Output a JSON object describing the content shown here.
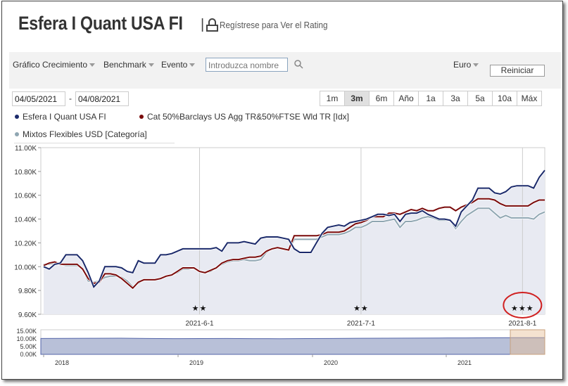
{
  "header": {
    "title": "Esfera I Quant USA FI",
    "separator": "|",
    "rating_link": "Regístrese para Ver el Rating"
  },
  "toolbar": {
    "growth_chart": "Gráfico Crecimiento",
    "benchmark": "Benchmark",
    "event": "Evento",
    "search_placeholder": "Introduzca nombre",
    "currency": "Euro",
    "reset": "Reiniciar"
  },
  "dates": {
    "start": "04/05/2021",
    "separator": "-",
    "end": "04/08/2021"
  },
  "periods": [
    {
      "label": "1m",
      "active": false
    },
    {
      "label": "3m",
      "active": true
    },
    {
      "label": "6m",
      "active": false
    },
    {
      "label": "Año",
      "active": false
    },
    {
      "label": "1a",
      "active": false
    },
    {
      "label": "3a",
      "active": false
    },
    {
      "label": "5a",
      "active": false
    },
    {
      "label": "10a",
      "active": false
    },
    {
      "label": "Máx",
      "active": false
    }
  ],
  "colors": {
    "fund": "#1b2a6b",
    "benchmark": "#7a0a0a",
    "category": "#8fa6b2",
    "area_fill": "#e8eaf2",
    "annotation": "#d02020"
  },
  "chart_data": {
    "type": "line",
    "title": "",
    "xlabel": "",
    "ylabel": "",
    "ylim": [
      9600,
      11000
    ],
    "x_ticks": [
      "2021-6-1",
      "2021-7-1",
      "2021-8-1"
    ],
    "y_ticks": [
      "9.60K",
      "9.80K",
      "10.00K",
      "10.20K",
      "10.40K",
      "10.60K",
      "10.80K",
      "11.00K"
    ],
    "grid": "vertical at x ticks",
    "legend_placement": "top-left",
    "series": [
      {
        "name": "Esfera I Quant USA FI",
        "values": [
          10000,
          9980,
          10020,
          10030,
          10100,
          10100,
          10100,
          10050,
          9950,
          9830,
          9880,
          10000,
          10000,
          10000,
          9990,
          9960,
          9950,
          10050,
          10030,
          10030,
          10030,
          10100,
          10100,
          10110,
          10130,
          10150,
          10150,
          10150,
          10150,
          10150,
          10150,
          10160,
          10130,
          10200,
          10200,
          10200,
          10210,
          10200,
          10190,
          10240,
          10250,
          10250,
          10250,
          10240,
          10230,
          10150,
          10120,
          10120,
          10120,
          10200,
          10280,
          10330,
          10340,
          10350,
          10340,
          10370,
          10380,
          10390,
          10400,
          10420,
          10440,
          10440,
          10430,
          10440,
          10380,
          10440,
          10450,
          10450,
          10470,
          10440,
          10420,
          10400,
          10400,
          10390,
          10340,
          10460,
          10510,
          10560,
          10660,
          10660,
          10660,
          10620,
          10610,
          10630,
          10670,
          10680,
          10680,
          10680,
          10660,
          10750,
          10810
        ]
      },
      {
        "name": "Cat 50%Barclays US Agg TR&50%FTSE Wld TR [Idx]",
        "values": [
          10010,
          10030,
          10040,
          10020,
          10020,
          10020,
          10020,
          9980,
          9900,
          9860,
          9870,
          9940,
          9940,
          9930,
          9900,
          9860,
          9820,
          9870,
          9890,
          9890,
          9890,
          9900,
          9920,
          9930,
          9960,
          9990,
          9990,
          9990,
          9960,
          9950,
          9970,
          9990,
          10030,
          10050,
          10060,
          10060,
          10070,
          10080,
          10080,
          10090,
          10130,
          10150,
          10160,
          10150,
          10140,
          10260,
          10260,
          10260,
          10260,
          10260,
          10270,
          10290,
          10290,
          10290,
          10300,
          10330,
          10360,
          10370,
          10390,
          10420,
          10420,
          10420,
          10450,
          10450,
          10440,
          10460,
          10480,
          10470,
          10490,
          10470,
          10470,
          10490,
          10500,
          10500,
          10470,
          10500,
          10520,
          10540,
          10570,
          10570,
          10570,
          10560,
          10530,
          10510,
          10510,
          10510,
          10510,
          10510,
          10540,
          10560,
          10560
        ]
      },
      {
        "name": "Mixtos Flexibles USD [Categoría]",
        "values": [
          10020,
          10020,
          10030,
          10020,
          10010,
          10010,
          10010,
          9980,
          9880,
          9870,
          9880,
          9910,
          9920,
          9920,
          9910,
          9880,
          9830,
          9860,
          9890,
          9890,
          9890,
          9900,
          9920,
          9930,
          9950,
          9980,
          9980,
          9990,
          9960,
          9950,
          9960,
          9990,
          10020,
          10040,
          10050,
          10050,
          10060,
          10050,
          10050,
          10060,
          10120,
          10150,
          10160,
          10150,
          10140,
          10230,
          10230,
          10230,
          10230,
          10230,
          10250,
          10270,
          10270,
          10270,
          10280,
          10300,
          10330,
          10330,
          10350,
          10380,
          10380,
          10380,
          10390,
          10400,
          10330,
          10380,
          10380,
          10390,
          10410,
          10420,
          10410,
          10390,
          10390,
          10390,
          10320,
          10380,
          10430,
          10460,
          10490,
          10490,
          10490,
          10450,
          10410,
          10430,
          10410,
          10410,
          10410,
          10410,
          10400,
          10440,
          10460
        ]
      }
    ],
    "rating_markers": [
      {
        "stars": "★★",
        "x_index": 28
      },
      {
        "stars": "★★",
        "x_index": 57
      },
      {
        "stars": "★★★",
        "x_index": 86
      }
    ],
    "navigator": {
      "y_ticks": [
        "15.00K",
        "10.00K",
        "5.00K",
        "0.00K"
      ],
      "x_ticks": [
        "2018",
        "2019",
        "2020",
        "2021"
      ],
      "values": [
        9700,
        9750,
        9800,
        9850,
        9700,
        9600,
        9650,
        9700,
        9600,
        9550,
        9650,
        9700,
        9800,
        9850,
        9900,
        10000,
        10050,
        10100,
        10150,
        10200
      ]
    }
  }
}
